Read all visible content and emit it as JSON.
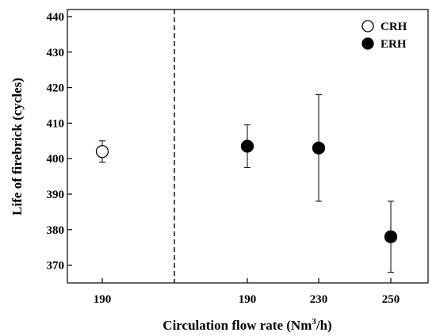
{
  "chart_data": {
    "type": "scatter",
    "title": "",
    "xlabel_main": "Circulation flow rate (Nm",
    "xlabel_sup": "3",
    "xlabel_tail": "/h)",
    "ylabel": "Life of firebrick (cycles)",
    "ylim": [
      365,
      442
    ],
    "yticks": [
      370,
      380,
      390,
      400,
      410,
      420,
      430,
      440
    ],
    "categories": [
      "190",
      "190",
      "230",
      "250"
    ],
    "separator_after_category": 0,
    "grid": false,
    "legend_position": "top-right",
    "series": [
      {
        "name": "CRH",
        "marker": "open-circle",
        "color": "#000000",
        "points": [
          {
            "category_index": 0,
            "y": 402,
            "err_low": 399,
            "err_high": 405
          }
        ]
      },
      {
        "name": "ERH",
        "marker": "filled-circle",
        "color": "#000000",
        "points": [
          {
            "category_index": 1,
            "y": 403.5,
            "err_low": 397.5,
            "err_high": 409.5
          },
          {
            "category_index": 2,
            "y": 403,
            "err_low": 388,
            "err_high": 418
          },
          {
            "category_index": 3,
            "y": 378,
            "err_low": 368,
            "err_high": 388
          }
        ]
      }
    ]
  }
}
